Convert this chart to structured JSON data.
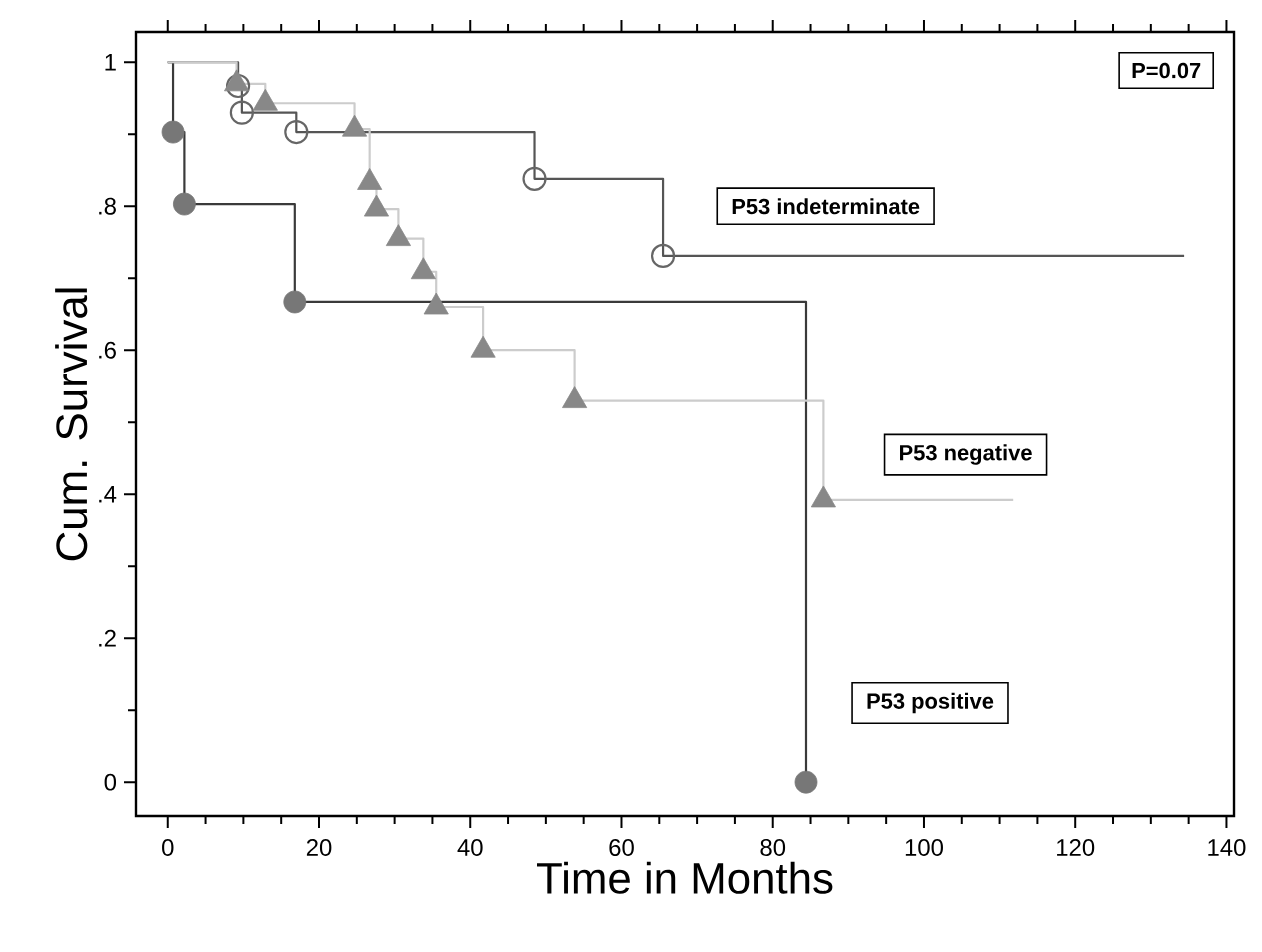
{
  "chart_data": {
    "type": "step",
    "xlabel": "Time in Months",
    "ylabel": "Cum. Survival",
    "xlim": [
      -4.2,
      141
    ],
    "ylim": [
      -0.047,
      1.042
    ],
    "xticks": [
      0,
      20,
      40,
      60,
      80,
      100,
      120,
      140
    ],
    "yticks": [
      {
        "value": 0,
        "label": "0"
      },
      {
        "value": 0.2,
        "label": ".2"
      },
      {
        "value": 0.4,
        "label": ".4"
      },
      {
        "value": 0.6,
        "label": ".6"
      },
      {
        "value": 0.8,
        "label": ".8"
      },
      {
        "value": 1,
        "label": "1"
      }
    ],
    "annotations": [
      "P=0.07"
    ],
    "grid": false,
    "series": [
      {
        "name": "P53 positive",
        "color": "#3a3a3a",
        "x": [
          0,
          0.7,
          2.2,
          16.8,
          84.4
        ],
        "values": [
          1,
          0.903,
          0.803,
          0.667,
          0
        ]
      },
      {
        "type": "scatter",
        "marker": "circle",
        "color": "#777777",
        "x": [
          0.7,
          2.2,
          16.8,
          84.4
        ],
        "values": [
          0.903,
          0.803,
          0.667,
          0
        ]
      },
      {
        "name": "P53 indeterminate",
        "color": "#555555",
        "x": [
          0,
          9.3,
          9.8,
          17.0,
          48.5,
          65.5,
          134.4
        ],
        "values": [
          1,
          0.967,
          0.93,
          0.903,
          0.838,
          0.731,
          0.731
        ]
      },
      {
        "type": "scatter",
        "marker": "circle",
        "color": "#666666",
        "x": [
          9.3,
          9.8,
          17.0,
          48.5,
          65.5
        ],
        "values": [
          0.967,
          0.93,
          0.903,
          0.838,
          0.731
        ]
      },
      {
        "name": "P53 negative",
        "color": "#cccccc",
        "x": [
          0,
          9.1,
          12.9,
          24.7,
          26.7,
          27.6,
          30.5,
          33.8,
          35.5,
          41.7,
          53.8,
          86.7,
          111.8
        ],
        "values": [
          1,
          0.97,
          0.943,
          0.907,
          0.833,
          0.796,
          0.755,
          0.709,
          0.66,
          0.6,
          0.53,
          0.392,
          0.392
        ]
      },
      {
        "type": "scatter",
        "marker": "triangle",
        "color": "#888888",
        "x": [
          9.1,
          12.9,
          24.7,
          26.7,
          27.6,
          30.5,
          33.8,
          35.5,
          41.7,
          53.8,
          86.7
        ],
        "values": [
          0.97,
          0.943,
          0.907,
          0.833,
          0.796,
          0.755,
          0.709,
          0.66,
          0.6,
          0.53,
          0.392
        ]
      }
    ]
  }
}
